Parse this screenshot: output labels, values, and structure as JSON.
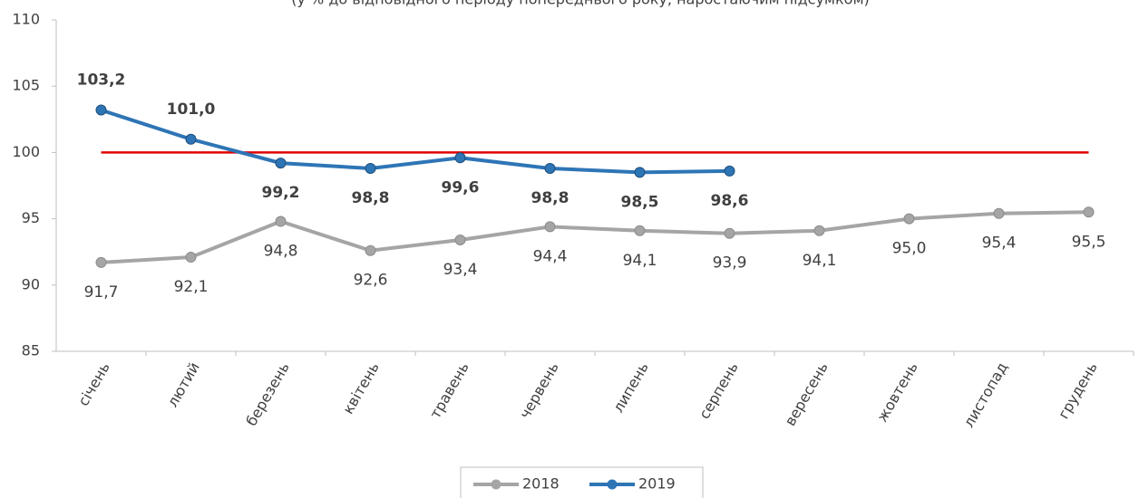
{
  "chart_data": {
    "type": "line",
    "title": "(у % до відповідного періоду попереднього року, наростаючим підсумком)",
    "categories": [
      "січень",
      "лютий",
      "березень",
      "квітень",
      "травень",
      "червень",
      "липень",
      "серпень",
      "вересень",
      "жовтень",
      "листопад",
      "грудень"
    ],
    "series": [
      {
        "name": "2018",
        "color": "#a5a5a5",
        "label_color": "#404040",
        "label_bold": false,
        "label_position": "below",
        "values": [
          91.7,
          92.1,
          94.8,
          92.6,
          93.4,
          94.4,
          94.1,
          93.9,
          94.1,
          95.0,
          95.4,
          95.5
        ],
        "value_labels": [
          "91,7",
          "92,1",
          "94,8",
          "92,6",
          "93,4",
          "94,4",
          "94,1",
          "93,9",
          "94,1",
          "95,0",
          "95,4",
          "95,5"
        ]
      },
      {
        "name": "2019",
        "color": "#2e75b6",
        "label_color": "#404040",
        "label_bold": true,
        "label_position": "auto",
        "values": [
          103.2,
          101.0,
          99.2,
          98.8,
          99.6,
          98.8,
          98.5,
          98.6,
          null,
          null,
          null,
          null
        ],
        "value_labels": [
          "103,2",
          "101,0",
          "99,2",
          "98,8",
          "99,6",
          "98,8",
          "98,5",
          "98,6",
          null,
          null,
          null,
          null
        ]
      }
    ],
    "reference_line": {
      "value": 100,
      "color": "#e00000"
    },
    "ylim": [
      85,
      110
    ],
    "yticks": [
      85,
      90,
      95,
      100,
      105,
      110
    ],
    "grid": false,
    "legend": "bottom"
  }
}
